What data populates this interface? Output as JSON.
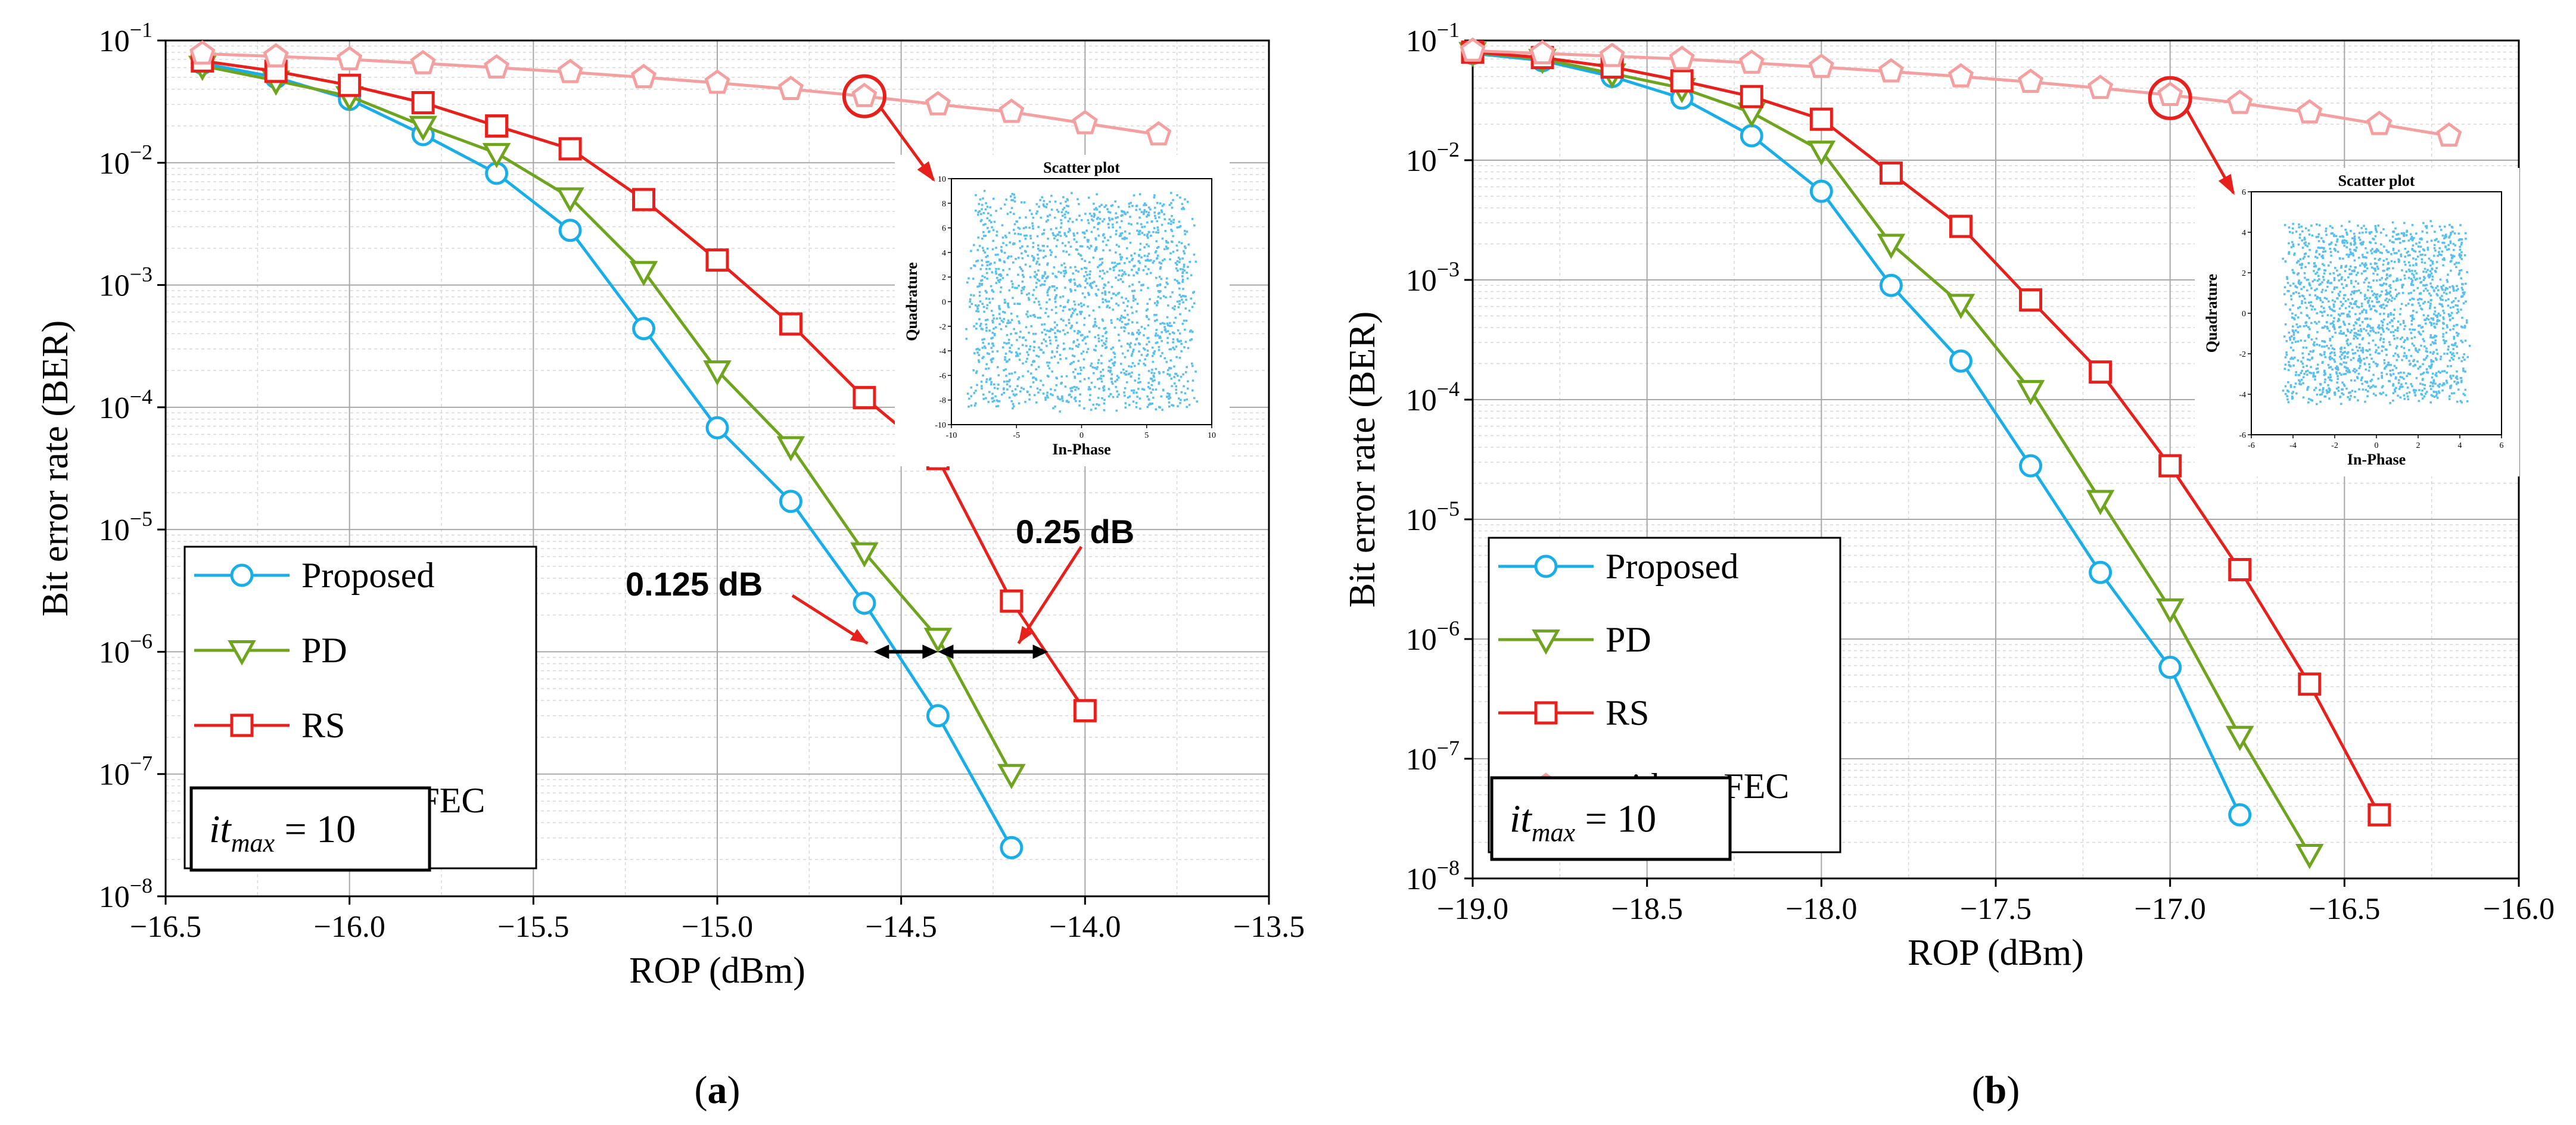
{
  "colors": {
    "proposed": "#1aaee8",
    "pd": "#6ea41e",
    "rs": "#e8201c",
    "without_fec": "#f5a0a0",
    "scatter": "#59bfef",
    "annotation": "#e8201c"
  },
  "chart_data": [
    {
      "type": "line",
      "subfigure_label": "(a)",
      "xlabel": "ROP (dBm)",
      "ylabel": "Bit error rate (BER)",
      "xlim": [
        -16.5,
        -13.5
      ],
      "ylim": [
        1e-08,
        0.1
      ],
      "yscale": "log",
      "xticks": [
        -16.5,
        -16.0,
        -15.5,
        -15.0,
        -14.5,
        -14.0,
        -13.5
      ],
      "xtick_labels": [
        "−16.5",
        "−16.0",
        "−15.5",
        "−15.0",
        "−14.5",
        "−14.0",
        "−13.5"
      ],
      "grid": true,
      "legend_position": "lower-left",
      "series": [
        {
          "name": "Proposed",
          "marker": "circle",
          "x": [
            -16.4,
            -16.2,
            -16.0,
            -15.8,
            -15.6,
            -15.4,
            -15.2,
            -15.0,
            -14.8,
            -14.6,
            -14.4,
            -14.2
          ],
          "y": [
            0.065,
            0.05,
            0.033,
            0.017,
            0.0082,
            0.0028,
            0.00044,
            6.8e-05,
            1.7e-05,
            2.5e-06,
            3e-07,
            2.5e-08
          ]
        },
        {
          "name": "PD",
          "marker": "triangle-down",
          "x": [
            -16.4,
            -16.2,
            -16.0,
            -15.8,
            -15.6,
            -15.4,
            -15.2,
            -15.0,
            -14.8,
            -14.6,
            -14.4,
            -14.2
          ],
          "y": [
            0.062,
            0.047,
            0.035,
            0.02,
            0.012,
            0.0052,
            0.0013,
            0.0002,
            4.8e-05,
            6.5e-06,
            1.3e-06,
            1e-07
          ]
        },
        {
          "name": "RS",
          "marker": "square",
          "x": [
            -16.4,
            -16.2,
            -16.0,
            -15.8,
            -15.6,
            -15.4,
            -15.2,
            -15.0,
            -14.8,
            -14.6,
            -14.4,
            -14.2,
            -14.0
          ],
          "y": [
            0.068,
            0.056,
            0.043,
            0.031,
            0.02,
            0.013,
            0.005,
            0.0016,
            0.00048,
            0.00012,
            3.8e-05,
            2.6e-06,
            3.3e-07
          ]
        },
        {
          "name": "without FEC",
          "marker": "pentagon",
          "x": [
            -16.4,
            -16.2,
            -16.0,
            -15.8,
            -15.6,
            -15.4,
            -15.2,
            -15.0,
            -14.8,
            -14.6,
            -14.4,
            -14.2,
            -14.0,
            -13.8
          ],
          "y": [
            0.078,
            0.074,
            0.07,
            0.065,
            0.06,
            0.055,
            0.05,
            0.045,
            0.04,
            0.035,
            0.03,
            0.026,
            0.021,
            0.017
          ]
        }
      ],
      "itmax_label": {
        "prefix": "it",
        "sub": "max",
        "suffix": " = 10"
      },
      "annotations": {
        "gap1": "0.125 dB",
        "gap2": "0.25 dB"
      },
      "inset": {
        "title": "Scatter plot",
        "xlabel": "In-Phase",
        "ylabel": "Quadrature",
        "xlim": [
          -10,
          10
        ],
        "ylim": [
          -10,
          10
        ],
        "xticks": [
          -10,
          -5,
          0,
          5,
          10
        ],
        "yticks": [
          -10,
          -8,
          -6,
          -4,
          -2,
          0,
          2,
          4,
          6,
          8,
          10
        ],
        "spread": 8.5,
        "points": 1800,
        "seed": 7
      },
      "highlight_point": {
        "x": -14.6,
        "y": 0.035
      }
    },
    {
      "type": "line",
      "subfigure_label": "(b)",
      "xlabel": "ROP (dBm)",
      "ylabel": "Bit error rate (BER)",
      "xlim": [
        -19.0,
        -16.0
      ],
      "ylim": [
        1e-08,
        0.1
      ],
      "yscale": "log",
      "xticks": [
        -19.0,
        -18.5,
        -18.0,
        -17.5,
        -17.0,
        -16.5,
        -16.0
      ],
      "xtick_labels": [
        "−19.0",
        "−18.5",
        "−18.0",
        "−17.5",
        "−17.0",
        "−16.5",
        "−16.0"
      ],
      "grid": true,
      "legend_position": "lower-left",
      "series": [
        {
          "name": "Proposed",
          "marker": "circle",
          "x": [
            -19.0,
            -18.8,
            -18.6,
            -18.4,
            -18.2,
            -18.0,
            -17.8,
            -17.6,
            -17.4,
            -17.2,
            -17.0,
            -16.8
          ],
          "y": [
            0.078,
            0.068,
            0.05,
            0.033,
            0.016,
            0.0055,
            0.0009,
            0.00021,
            2.8e-05,
            3.6e-06,
            5.8e-07,
            3.4e-08
          ]
        },
        {
          "name": "PD",
          "marker": "triangle-down",
          "x": [
            -19.0,
            -18.8,
            -18.6,
            -18.4,
            -18.2,
            -18.0,
            -17.8,
            -17.6,
            -17.4,
            -17.2,
            -17.0,
            -16.8,
            -16.6
          ],
          "y": [
            0.08,
            0.07,
            0.053,
            0.04,
            0.025,
            0.012,
            0.002,
            0.00063,
            0.00012,
            1.45e-05,
            1.8e-06,
            1.55e-07,
            1.6e-08
          ]
        },
        {
          "name": "RS",
          "marker": "square",
          "x": [
            -19.0,
            -18.8,
            -18.6,
            -18.4,
            -18.2,
            -18.0,
            -17.8,
            -17.6,
            -17.4,
            -17.2,
            -17.0,
            -16.8,
            -16.6,
            -16.4
          ],
          "y": [
            0.08,
            0.072,
            0.06,
            0.046,
            0.034,
            0.022,
            0.0078,
            0.0028,
            0.00068,
            0.00017,
            2.8e-05,
            3.8e-06,
            4.2e-07,
            3.4e-08
          ]
        },
        {
          "name": "without FEC",
          "marker": "pentagon",
          "x": [
            -19.0,
            -18.8,
            -18.6,
            -18.4,
            -18.2,
            -18.0,
            -17.8,
            -17.6,
            -17.4,
            -17.2,
            -17.0,
            -16.8,
            -16.6,
            -16.4,
            -16.2
          ],
          "y": [
            0.082,
            0.078,
            0.074,
            0.07,
            0.065,
            0.06,
            0.055,
            0.05,
            0.045,
            0.04,
            0.035,
            0.03,
            0.025,
            0.02,
            0.016
          ]
        }
      ],
      "itmax_label": {
        "prefix": "it",
        "sub": "max",
        "suffix": " = 10"
      },
      "inset": {
        "title": "Scatter plot",
        "xlabel": "In-Phase",
        "ylabel": "Quadrature",
        "xlim": [
          -6,
          6
        ],
        "ylim": [
          -6,
          6
        ],
        "xticks": [
          -6,
          -4,
          -2,
          0,
          2,
          4,
          6
        ],
        "yticks": [
          -6,
          -4,
          -2,
          0,
          2,
          4,
          6
        ],
        "spread": 4.3,
        "points": 1800,
        "seed": 13
      },
      "highlight_point": {
        "x": -17.0,
        "y": 0.033
      }
    }
  ]
}
